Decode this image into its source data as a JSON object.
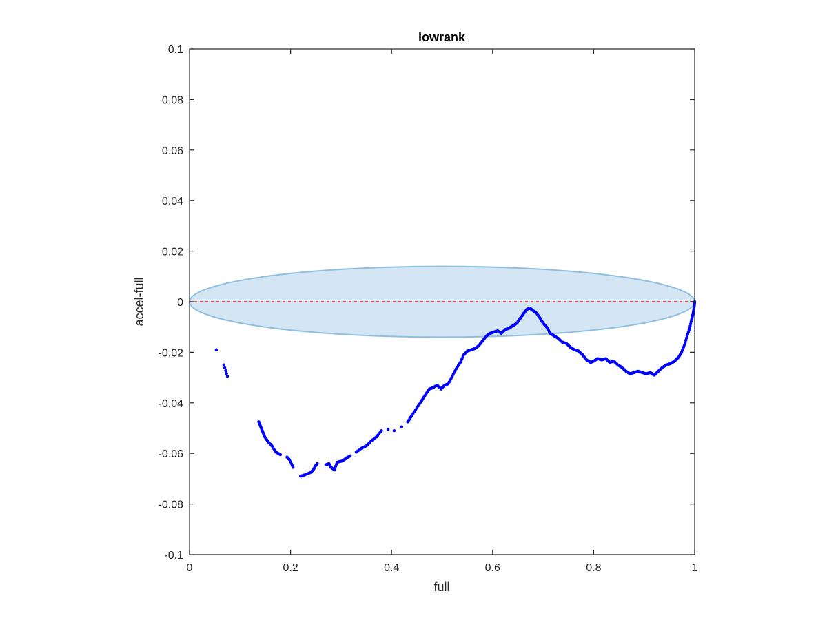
{
  "chart_data": {
    "type": "scatter",
    "title": "lowrank",
    "xlabel": "full",
    "ylabel": "accel-full",
    "xlim": [
      0,
      1
    ],
    "ylim": [
      -0.1,
      0.1
    ],
    "x_ticks": [
      "0",
      "0.2",
      "0.4",
      "0.6",
      "0.8",
      "1"
    ],
    "y_ticks": [
      "0.1",
      "0.08",
      "0.06",
      "0.04",
      "0.02",
      "0",
      "-0.02",
      "-0.04",
      "-0.06",
      "-0.08",
      "-0.1"
    ],
    "grid": false,
    "legend": "none",
    "reference_line": {
      "y": 0,
      "style": "dotted",
      "color": "#e8423b"
    },
    "confidence_ellipse": {
      "center": [
        0.5,
        0
      ],
      "semi_x": 0.5,
      "semi_y_upper": 0.014,
      "semi_y_lower": 0.014,
      "fill": "#d4e6f4",
      "stroke": "#8fbfe0"
    },
    "series": [
      {
        "color": "#0000ff",
        "points": [
          [
            0.053,
            -0.019
          ],
          [
            0.068,
            -0.025
          ],
          [
            0.075,
            -0.0295
          ],
          [
            0.137,
            -0.0475
          ],
          [
            0.141,
            -0.0495
          ],
          [
            0.145,
            -0.0515
          ],
          [
            0.149,
            -0.0535
          ],
          [
            0.156,
            -0.0555
          ],
          [
            0.163,
            -0.057
          ],
          [
            0.171,
            -0.0595
          ],
          [
            0.18,
            -0.0605
          ],
          [
            0.193,
            -0.0615
          ],
          [
            0.198,
            -0.0625
          ],
          [
            0.205,
            -0.0655
          ],
          [
            0.22,
            -0.069
          ],
          [
            0.228,
            -0.0685
          ],
          [
            0.24,
            -0.0675
          ],
          [
            0.245,
            -0.0665
          ],
          [
            0.249,
            -0.065
          ],
          [
            0.253,
            -0.064
          ],
          [
            0.27,
            -0.0645
          ],
          [
            0.276,
            -0.064
          ],
          [
            0.28,
            -0.0655
          ],
          [
            0.287,
            -0.0665
          ],
          [
            0.292,
            -0.0635
          ],
          [
            0.302,
            -0.063
          ],
          [
            0.31,
            -0.062
          ],
          [
            0.318,
            -0.061
          ],
          [
            0.33,
            -0.0595
          ],
          [
            0.34,
            -0.058
          ],
          [
            0.35,
            -0.057
          ],
          [
            0.36,
            -0.055
          ],
          [
            0.37,
            -0.0535
          ],
          [
            0.38,
            -0.051
          ],
          [
            0.393,
            -0.0505
          ],
          [
            0.405,
            -0.051
          ],
          [
            0.42,
            -0.0495
          ],
          [
            0.432,
            -0.0475
          ],
          [
            0.44,
            -0.045
          ],
          [
            0.45,
            -0.042
          ],
          [
            0.46,
            -0.039
          ],
          [
            0.468,
            -0.0365
          ],
          [
            0.475,
            -0.0345
          ],
          [
            0.482,
            -0.034
          ],
          [
            0.49,
            -0.033
          ],
          [
            0.498,
            -0.0345
          ],
          [
            0.505,
            -0.033
          ],
          [
            0.512,
            -0.0325
          ],
          [
            0.52,
            -0.0295
          ],
          [
            0.528,
            -0.0265
          ],
          [
            0.536,
            -0.024
          ],
          [
            0.543,
            -0.021
          ],
          [
            0.55,
            -0.0195
          ],
          [
            0.558,
            -0.019
          ],
          [
            0.565,
            -0.0185
          ],
          [
            0.572,
            -0.0175
          ],
          [
            0.58,
            -0.0155
          ],
          [
            0.588,
            -0.0135
          ],
          [
            0.595,
            -0.0125
          ],
          [
            0.602,
            -0.012
          ],
          [
            0.61,
            -0.0115
          ],
          [
            0.617,
            -0.0125
          ],
          [
            0.625,
            -0.011
          ],
          [
            0.632,
            -0.0105
          ],
          [
            0.64,
            -0.0095
          ],
          [
            0.648,
            -0.0085
          ],
          [
            0.655,
            -0.0065
          ],
          [
            0.662,
            -0.0045
          ],
          [
            0.668,
            -0.003
          ],
          [
            0.674,
            -0.0025
          ],
          [
            0.68,
            -0.0035
          ],
          [
            0.687,
            -0.0045
          ],
          [
            0.694,
            -0.0065
          ],
          [
            0.7,
            -0.0085
          ],
          [
            0.707,
            -0.01
          ],
          [
            0.714,
            -0.0125
          ],
          [
            0.722,
            -0.0135
          ],
          [
            0.73,
            -0.0145
          ],
          [
            0.738,
            -0.016
          ],
          [
            0.746,
            -0.0165
          ],
          [
            0.754,
            -0.018
          ],
          [
            0.762,
            -0.019
          ],
          [
            0.77,
            -0.0195
          ],
          [
            0.778,
            -0.021
          ],
          [
            0.786,
            -0.023
          ],
          [
            0.794,
            -0.024
          ],
          [
            0.8,
            -0.0235
          ],
          [
            0.808,
            -0.0225
          ],
          [
            0.816,
            -0.023
          ],
          [
            0.824,
            -0.0225
          ],
          [
            0.832,
            -0.024
          ],
          [
            0.84,
            -0.0235
          ],
          [
            0.848,
            -0.025
          ],
          [
            0.856,
            -0.026
          ],
          [
            0.864,
            -0.0275
          ],
          [
            0.872,
            -0.0285
          ],
          [
            0.88,
            -0.028
          ],
          [
            0.888,
            -0.0275
          ],
          [
            0.896,
            -0.028
          ],
          [
            0.904,
            -0.0285
          ],
          [
            0.912,
            -0.028
          ],
          [
            0.92,
            -0.029
          ],
          [
            0.928,
            -0.0275
          ],
          [
            0.936,
            -0.026
          ],
          [
            0.944,
            -0.025
          ],
          [
            0.952,
            -0.0245
          ],
          [
            0.96,
            -0.0235
          ],
          [
            0.968,
            -0.022
          ],
          [
            0.974,
            -0.02
          ],
          [
            0.98,
            -0.017
          ],
          [
            0.985,
            -0.0135
          ],
          [
            0.99,
            -0.0105
          ],
          [
            0.994,
            -0.007
          ],
          [
            0.997,
            -0.0045
          ],
          [
            0.999,
            -0.002
          ],
          [
            1.0,
            0.0
          ]
        ]
      }
    ]
  }
}
